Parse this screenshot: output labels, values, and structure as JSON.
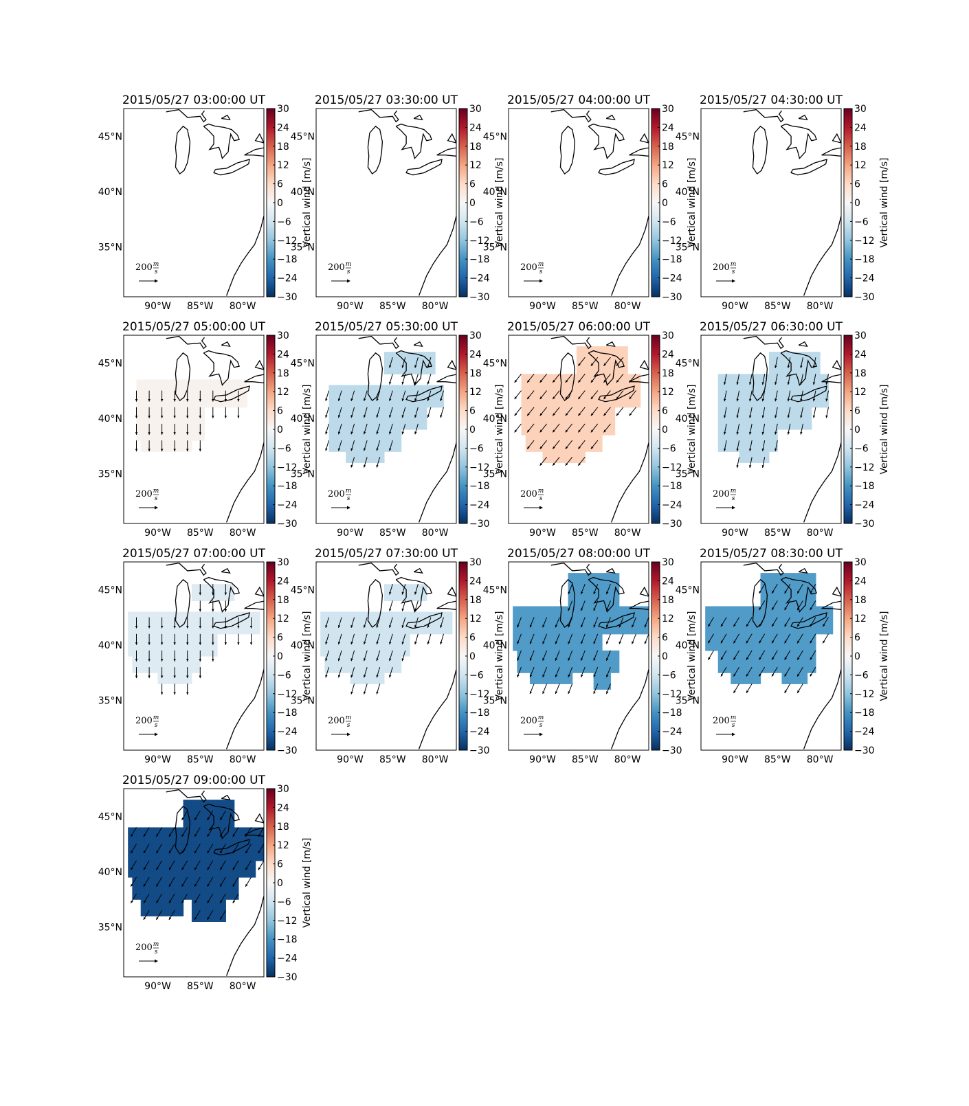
{
  "chart_data": {
    "type": "heatmap",
    "layout": "small-multiples 4 columns",
    "x_axis": {
      "ticks": [
        -90,
        -85,
        -80
      ],
      "tick_labels": [
        "90°W",
        "85°W",
        "80°W"
      ],
      "range": [
        -94,
        -77.5
      ]
    },
    "y_axis": {
      "ticks": [
        35,
        40,
        45
      ],
      "tick_labels": [
        "35°N",
        "40°N",
        "45°N"
      ],
      "range": [
        30.5,
        47.5
      ]
    },
    "colorbar": {
      "label": "Vertical wind [m/s]",
      "range": [
        -30,
        30
      ],
      "ticks": [
        30,
        24,
        18,
        12,
        6,
        0,
        -6,
        -12,
        -18,
        -24,
        -30
      ],
      "tick_labels": [
        "30",
        "24",
        "18",
        "12",
        "6",
        "0",
        "−6",
        "−12",
        "−18",
        "−24",
        "−30"
      ],
      "colormap": "RdBu_r",
      "colors": [
        "#053061",
        "#2166ac",
        "#4393c3",
        "#92c5de",
        "#d1e5f0",
        "#f7f7f7",
        "#fddbc7",
        "#f4a582",
        "#d6604d",
        "#b2182b",
        "#67001f"
      ]
    },
    "reference_vector": {
      "magnitude": 200,
      "label": "200",
      "unit_num": "m",
      "unit_den": "s"
    },
    "panels": [
      {
        "title": "2015/05/27 03:00:00 UT",
        "vertical_wind": null,
        "region": "none"
      },
      {
        "title": "2015/05/27 03:30:00 UT",
        "vertical_wind": null,
        "region": "none"
      },
      {
        "title": "2015/05/27 04:00:00 UT",
        "vertical_wind": null,
        "region": "none"
      },
      {
        "title": "2015/05/27 04:30:00 UT",
        "vertical_wind": null,
        "region": "none"
      },
      {
        "title": "2015/05/27 05:00:00 UT",
        "vertical_wind": 1,
        "region": "r1",
        "arrow_u": 0,
        "arrow_v": -1
      },
      {
        "title": "2015/05/27 05:30:00 UT",
        "vertical_wind": -8,
        "region": "r2",
        "arrow_u": -0.3,
        "arrow_v": -1
      },
      {
        "title": "2015/05/27 06:00:00 UT",
        "vertical_wind": 7,
        "region": "r3",
        "arrow_u": -0.8,
        "arrow_v": -1
      },
      {
        "title": "2015/05/27 06:30:00 UT",
        "vertical_wind": -8,
        "region": "r4",
        "arrow_u": -0.2,
        "arrow_v": -1
      },
      {
        "title": "2015/05/27 07:00:00 UT",
        "vertical_wind": -4,
        "region": "r5",
        "arrow_u": 0,
        "arrow_v": -1
      },
      {
        "title": "2015/05/27 07:30:00 UT",
        "vertical_wind": -6,
        "region": "r6",
        "arrow_u": -0.3,
        "arrow_v": -1
      },
      {
        "title": "2015/05/27 08:00:00 UT",
        "vertical_wind": -17,
        "region": "r7",
        "arrow_u": -0.4,
        "arrow_v": -1
      },
      {
        "title": "2015/05/27 08:30:00 UT",
        "vertical_wind": -17,
        "region": "r8",
        "arrow_u": -0.6,
        "arrow_v": -1
      },
      {
        "title": "2015/05/27 09:00:00 UT",
        "vertical_wind": -27,
        "region": "r9",
        "arrow_u": -0.6,
        "arrow_v": -1
      }
    ]
  }
}
